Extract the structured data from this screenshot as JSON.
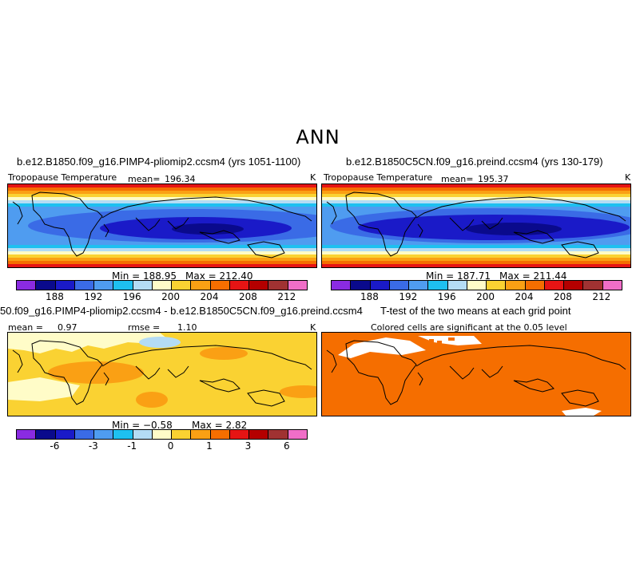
{
  "page_title": "ANN",
  "colors": {
    "abs_palette": [
      "#8a2be2",
      "#0a0a8c",
      "#1a1ac8",
      "#3a6be6",
      "#4f9cf0",
      "#1ec0f0",
      "#b4dcf5",
      "#fffcc8",
      "#fad232",
      "#faa014",
      "#f56e00",
      "#e61414",
      "#b40000",
      "#a03232",
      "#f06ec8"
    ],
    "diff_palette": [
      "#8a2be2",
      "#0a0a8c",
      "#1a1ac8",
      "#3a6be6",
      "#4f9cf0",
      "#1ec0f0",
      "#b4dcf5",
      "#fffcc8",
      "#fad232",
      "#faa014",
      "#f56e00",
      "#e61414",
      "#b40000",
      "#a03232",
      "#f06ec8"
    ],
    "ttest_fill": "#f56e00"
  },
  "panels": [
    {
      "case_title": "b.e12.B1850.f09_g16.PIMP4-pliomip2.ccsm4 (yrs 1051-1100)",
      "variable": "Tropopause Temperature",
      "mean_label": "mean=",
      "mean_value": "196.34",
      "units": "K",
      "min_label": "Min = 188.95",
      "max_label": "Max = 212.40"
    },
    {
      "case_title": "b.e12.B1850C5CN.f09_g16.preind.ccsm4 (yrs 130-179)",
      "variable": "Tropopause Temperature",
      "mean_label": "mean=",
      "mean_value": "195.37",
      "units": "K",
      "min_label": "Min = 187.71",
      "max_label": "Max = 211.44"
    },
    {
      "case_title": "50.f09_g16.PIMP4-pliomip2.ccsm4 - b.e12.B1850C5CN.f09_g16.preind.ccsm4",
      "mean_label": "mean =",
      "mean_value": "0.97",
      "rmse_label": "rmse =",
      "rmse_value": "1.10",
      "units": "K",
      "min_label": "Min = −0.58",
      "max_label": "Max = 2.82"
    },
    {
      "case_title": "T-test of the two means at each grid point",
      "subtitle": "Colored cells are significant at the 0.05 level"
    }
  ],
  "chart_data": [
    {
      "type": "heatmap",
      "title": "b.e12.B1850.f09_g16.PIMP4-pliomip2.ccsm4 (yrs 1051-1100)",
      "variable": "Tropopause Temperature",
      "units": "K",
      "mean": 196.34,
      "min": 188.95,
      "max": 212.4,
      "colorbar_ticks": [
        188,
        192,
        196,
        200,
        204,
        208,
        212
      ]
    },
    {
      "type": "heatmap",
      "title": "b.e12.B1850C5CN.f09_g16.preind.ccsm4 (yrs 130-179)",
      "variable": "Tropopause Temperature",
      "units": "K",
      "mean": 195.37,
      "min": 187.71,
      "max": 211.44,
      "colorbar_ticks": [
        188,
        192,
        196,
        200,
        204,
        208,
        212
      ]
    },
    {
      "type": "heatmap",
      "title": "50.f09_g16.PIMP4-pliomip2.ccsm4 - b.e12.B1850C5CN.f09_g16.preind.ccsm4",
      "units": "K",
      "mean": 0.97,
      "rmse": 1.1,
      "min": -0.58,
      "max": 2.82,
      "colorbar_ticks": [
        "-6",
        "-3",
        "-1",
        "0",
        "1",
        "3",
        "6"
      ]
    },
    {
      "type": "heatmap",
      "title": "T-test of the two means at each grid point",
      "subtitle": "Colored cells are significant at the 0.05 level"
    }
  ]
}
